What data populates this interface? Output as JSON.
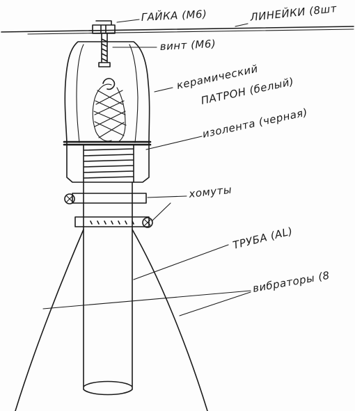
{
  "labels": {
    "nut": "ГАЙКА (М6)",
    "rulers": "ЛИНЕЙКИ (8шт",
    "screw": "винт (М6)",
    "ceramic_socket_line1": "керамический",
    "ceramic_socket_line2": "ПАТРОН (белый)",
    "insulation_tape": "изолента (черная)",
    "clamps": "хомуты",
    "pipe": "ТРУБА (AL)",
    "guy_wires": "вибраторы (8"
  }
}
